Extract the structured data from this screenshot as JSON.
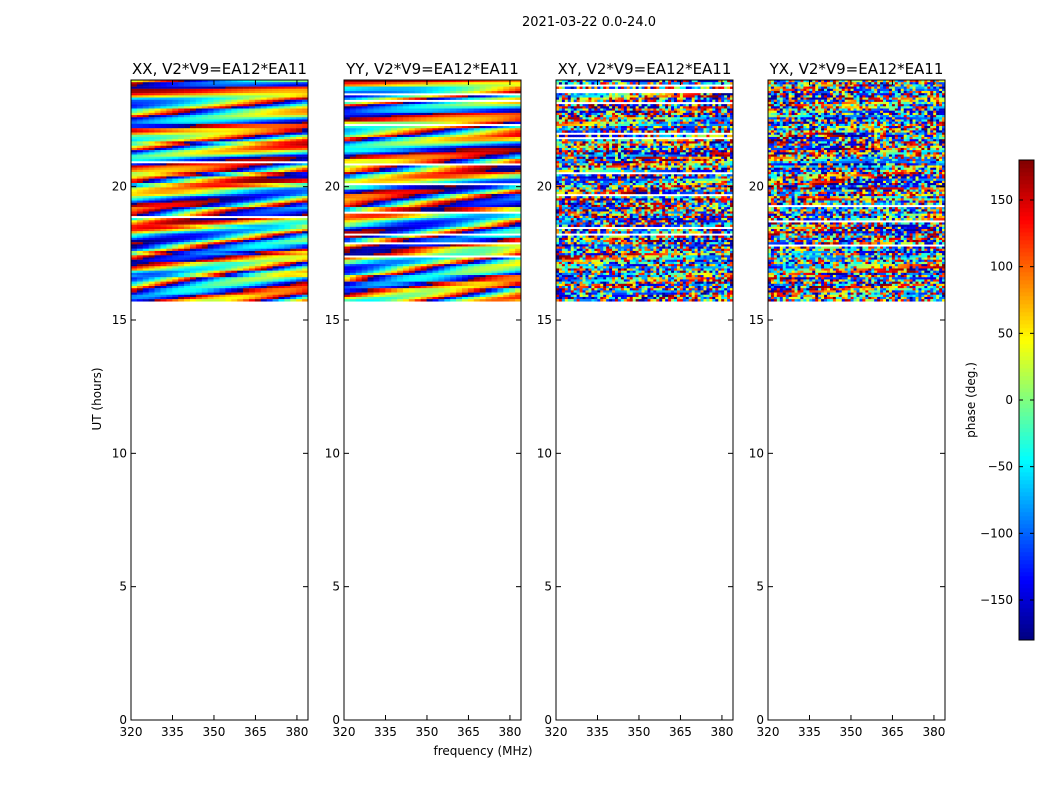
{
  "figure": {
    "suptitle": "2021-03-22 0.0-24.0",
    "xlabel": "frequency (MHz)",
    "ylabel": "UT (hours)"
  },
  "colorbar": {
    "label": "phase (deg.)",
    "range": [
      -180,
      180
    ],
    "ticks": [
      -150,
      -100,
      -50,
      0,
      50,
      100,
      150
    ],
    "tick_labels": [
      "−150",
      "−100",
      "−50",
      "0",
      "50",
      "100",
      "150"
    ],
    "colormap": "jet"
  },
  "chart_data": [
    {
      "type": "heatmap",
      "title": "XX, V2*V9=EA12*EA11",
      "pattern": "smooth",
      "xlim": [
        320,
        384
      ],
      "ylim": [
        0,
        24
      ],
      "xticks": [
        320,
        335,
        350,
        365,
        380
      ],
      "yticks": [
        0,
        5,
        10,
        15,
        20
      ],
      "data_time_range": [
        15.7,
        24.0
      ]
    },
    {
      "type": "heatmap",
      "title": "YY, V2*V9=EA12*EA11",
      "pattern": "smooth",
      "xlim": [
        320,
        384
      ],
      "ylim": [
        0,
        24
      ],
      "xticks": [
        320,
        335,
        350,
        365,
        380
      ],
      "yticks": [
        0,
        5,
        10,
        15,
        20
      ],
      "data_time_range": [
        15.7,
        24.0
      ]
    },
    {
      "type": "heatmap",
      "title": "XY, V2*V9=EA12*EA11",
      "pattern": "noisy",
      "xlim": [
        320,
        384
      ],
      "ylim": [
        0,
        24
      ],
      "xticks": [
        320,
        335,
        350,
        365,
        380
      ],
      "yticks": [
        0,
        5,
        10,
        15,
        20
      ],
      "data_time_range": [
        15.7,
        24.0
      ]
    },
    {
      "type": "heatmap",
      "title": "YX, V2*V9=EA12*EA11",
      "pattern": "noisy",
      "xlim": [
        320,
        384
      ],
      "ylim": [
        0,
        24
      ],
      "xticks": [
        320,
        335,
        350,
        365,
        380
      ],
      "yticks": [
        0,
        5,
        10,
        15,
        20
      ],
      "data_time_range": [
        15.7,
        24.0
      ]
    }
  ]
}
